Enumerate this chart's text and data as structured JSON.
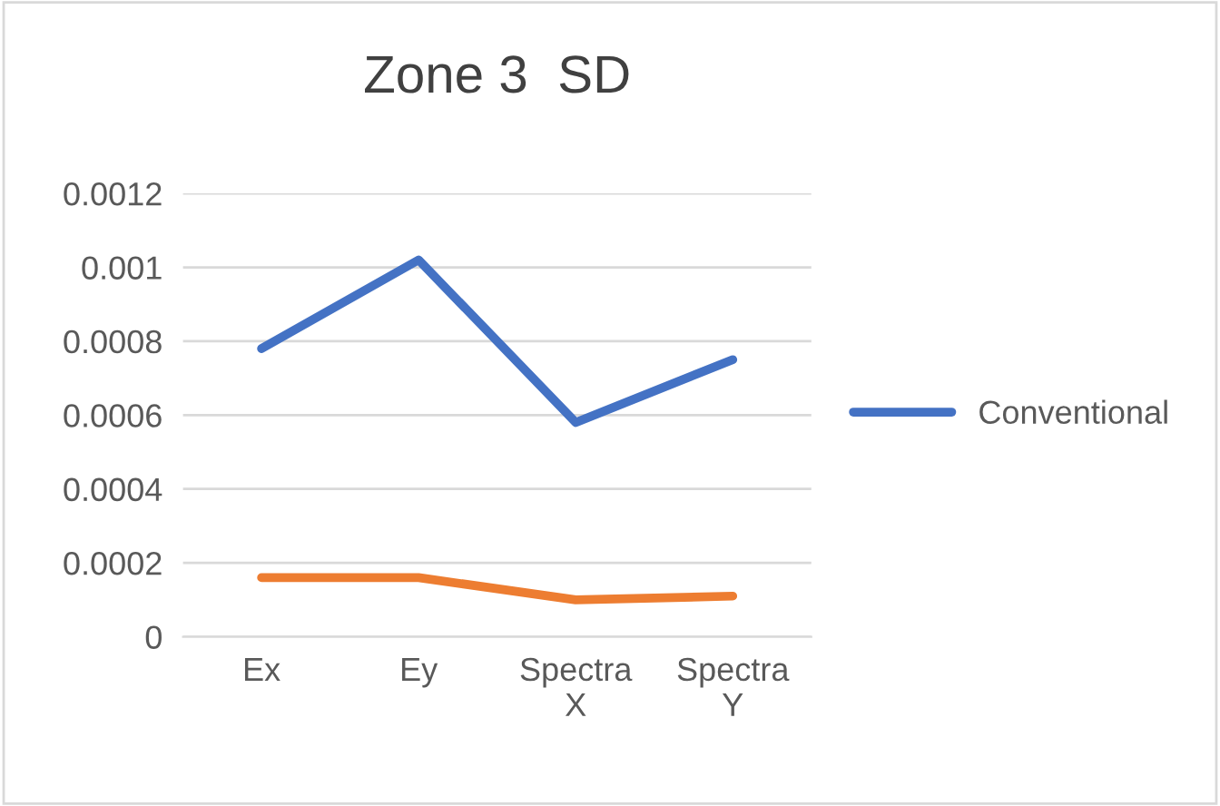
{
  "chart_data": {
    "type": "line",
    "title": "Zone 3  SD",
    "categories": [
      "Ex",
      "Ey",
      "Spectra X",
      "Spectra Y"
    ],
    "series": [
      {
        "name": "Conventional",
        "color": "#4472c4",
        "values": [
          0.00078,
          0.00102,
          0.00058,
          0.00075
        ]
      },
      {
        "color": "#ed7d31",
        "values": [
          0.00016,
          0.00016,
          0.0001,
          0.00011
        ]
      }
    ],
    "ylim": [
      0,
      0.0012
    ],
    "yticks": [
      0,
      0.0002,
      0.0004,
      0.0006,
      0.0008,
      0.001,
      0.0012
    ],
    "grid": "y",
    "legend": "right",
    "marker": "none",
    "line_style": "solid"
  }
}
